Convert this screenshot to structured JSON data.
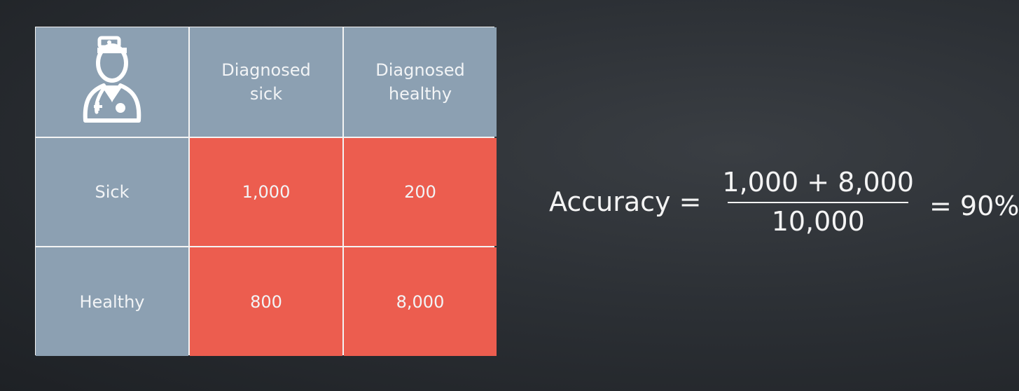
{
  "matrix": {
    "corner_icon": "doctor-icon",
    "columns": [
      "Diagnosed sick",
      "Diagnosed healthy"
    ],
    "rows": [
      {
        "label": "Sick",
        "values": [
          "1,000",
          "200"
        ]
      },
      {
        "label": "Healthy",
        "values": [
          "800",
          "8,000"
        ]
      }
    ]
  },
  "formula": {
    "lhs": "Accuracy =",
    "numerator": "1,000 + 8,000",
    "denominator": "10,000",
    "rhs": "= 90%"
  },
  "colors": {
    "label_cell": "#8ca0b2",
    "value_cell": "#ec5d4f",
    "text": "#f4f4f4"
  }
}
